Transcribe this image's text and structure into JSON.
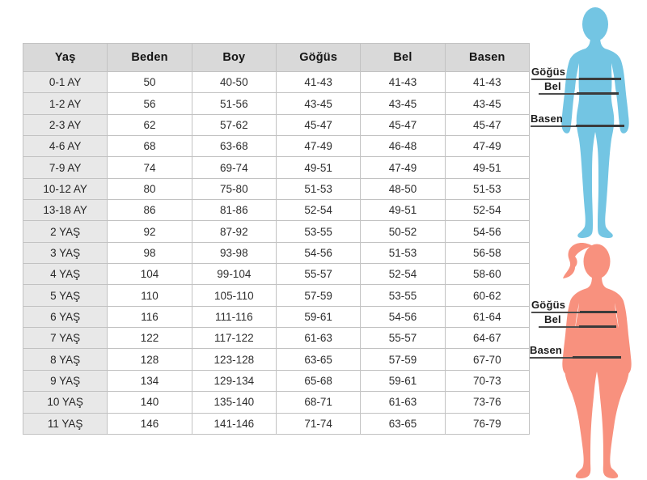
{
  "table": {
    "headers": [
      "Yaş",
      "Beden",
      "Boy",
      "Göğüs",
      "Bel",
      "Basen"
    ],
    "rows": [
      [
        "0-1 AY",
        "50",
        "40-50",
        "41-43",
        "41-43",
        "41-43"
      ],
      [
        "1-2 AY",
        "56",
        "51-56",
        "43-45",
        "43-45",
        "43-45"
      ],
      [
        "2-3 AY",
        "62",
        "57-62",
        "45-47",
        "45-47",
        "45-47"
      ],
      [
        "4-6 AY",
        "68",
        "63-68",
        "47-49",
        "46-48",
        "47-49"
      ],
      [
        "7-9 AY",
        "74",
        "69-74",
        "49-51",
        "47-49",
        "49-51"
      ],
      [
        "10-12 AY",
        "80",
        "75-80",
        "51-53",
        "48-50",
        "51-53"
      ],
      [
        "13-18 AY",
        "86",
        "81-86",
        "52-54",
        "49-51",
        "52-54"
      ],
      [
        "2 YAŞ",
        "92",
        "87-92",
        "53-55",
        "50-52",
        "54-56"
      ],
      [
        "3 YAŞ",
        "98",
        "93-98",
        "54-56",
        "51-53",
        "56-58"
      ],
      [
        "4 YAŞ",
        "104",
        "99-104",
        "55-57",
        "52-54",
        "58-60"
      ],
      [
        "5 YAŞ",
        "110",
        "105-110",
        "57-59",
        "53-55",
        "60-62"
      ],
      [
        "6 YAŞ",
        "116",
        "111-116",
        "59-61",
        "54-56",
        "61-64"
      ],
      [
        "7 YAŞ",
        "122",
        "117-122",
        "61-63",
        "55-57",
        "64-67"
      ],
      [
        "8 YAŞ",
        "128",
        "123-128",
        "63-65",
        "57-59",
        "67-70"
      ],
      [
        "9 YAŞ",
        "134",
        "129-134",
        "65-68",
        "59-61",
        "70-73"
      ],
      [
        "10 YAŞ",
        "140",
        "135-140",
        "68-71",
        "61-63",
        "73-76"
      ],
      [
        "11 YAŞ",
        "146",
        "141-146",
        "71-74",
        "63-65",
        "76-79"
      ]
    ]
  },
  "figures": {
    "boy": {
      "chest_label": "Göğüs",
      "waist_label": "Bel",
      "hip_label": "Basen",
      "color": "#73C5E3"
    },
    "girl": {
      "chest_label": "Göğüs",
      "waist_label": "Bel",
      "hip_label": "Basen",
      "color": "#F8917E"
    }
  },
  "colors": {
    "header_bg": "#d9d9d9",
    "age_column_bg": "#e8e8e8",
    "cell_border": "#c2c2c2",
    "measure_line": "#4d4d4d",
    "boy_silhouette": "#73C5E3",
    "girl_silhouette": "#F8917E"
  },
  "chart_data": {
    "type": "table",
    "title": "",
    "columns": [
      "Yaş",
      "Beden",
      "Boy",
      "Göğüs",
      "Bel",
      "Basen"
    ],
    "rows": [
      [
        "0-1 AY",
        "50",
        "40-50",
        "41-43",
        "41-43",
        "41-43"
      ],
      [
        "1-2 AY",
        "56",
        "51-56",
        "43-45",
        "43-45",
        "43-45"
      ],
      [
        "2-3 AY",
        "62",
        "57-62",
        "45-47",
        "45-47",
        "45-47"
      ],
      [
        "4-6 AY",
        "68",
        "63-68",
        "47-49",
        "46-48",
        "47-49"
      ],
      [
        "7-9 AY",
        "74",
        "69-74",
        "49-51",
        "47-49",
        "49-51"
      ],
      [
        "10-12 AY",
        "80",
        "75-80",
        "51-53",
        "48-50",
        "51-53"
      ],
      [
        "13-18 AY",
        "86",
        "81-86",
        "52-54",
        "49-51",
        "52-54"
      ],
      [
        "2 YAŞ",
        "92",
        "87-92",
        "53-55",
        "50-52",
        "54-56"
      ],
      [
        "3 YAŞ",
        "98",
        "93-98",
        "54-56",
        "51-53",
        "56-58"
      ],
      [
        "4 YAŞ",
        "104",
        "99-104",
        "55-57",
        "52-54",
        "58-60"
      ],
      [
        "5 YAŞ",
        "110",
        "105-110",
        "57-59",
        "53-55",
        "60-62"
      ],
      [
        "6 YAŞ",
        "116",
        "111-116",
        "59-61",
        "54-56",
        "61-64"
      ],
      [
        "7 YAŞ",
        "122",
        "117-122",
        "61-63",
        "55-57",
        "64-67"
      ],
      [
        "8 YAŞ",
        "128",
        "123-128",
        "63-65",
        "57-59",
        "67-70"
      ],
      [
        "9 YAŞ",
        "134",
        "129-134",
        "65-68",
        "59-61",
        "70-73"
      ],
      [
        "10 YAŞ",
        "140",
        "135-140",
        "68-71",
        "61-63",
        "73-76"
      ],
      [
        "11 YAŞ",
        "146",
        "141-146",
        "71-74",
        "63-65",
        "76-79"
      ]
    ]
  }
}
